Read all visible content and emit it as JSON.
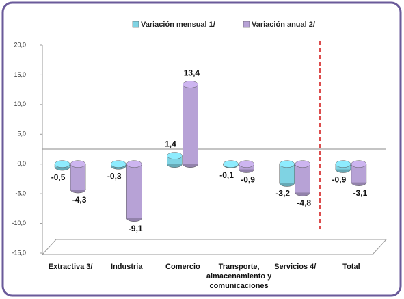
{
  "chart_data": {
    "type": "bar",
    "categories": [
      "Extractiva 3/",
      "Industria",
      "Comercio",
      "Transporte, almacenamiento y comunicaciones",
      "Servicios 4/",
      "Total"
    ],
    "series": [
      {
        "name": "Variación mensual 1/",
        "color": "#7fd3e3",
        "values": [
          -0.5,
          -0.3,
          1.4,
          -0.1,
          -3.2,
          -0.9
        ],
        "value_labels": [
          "-0,5",
          "-0,3",
          "1,4",
          "-0,1",
          "-3,2",
          "-0,9"
        ]
      },
      {
        "name": "Variación anual  2/",
        "color": "#b7a2d6",
        "values": [
          -4.3,
          -9.1,
          13.4,
          -0.9,
          -4.8,
          -3.1
        ],
        "value_labels": [
          "-4,3",
          "-9,1",
          "13,4",
          "-0,9",
          "-4,8",
          "-3,1"
        ]
      }
    ],
    "ylim": [
      -15,
      20
    ],
    "yticks": [
      {
        "value": -15,
        "label": "-15,0"
      },
      {
        "value": -10,
        "label": "-10,0"
      },
      {
        "value": -5,
        "label": "-5,0"
      },
      {
        "value": 0,
        "label": "0,0"
      },
      {
        "value": 5,
        "label": "5,0"
      },
      {
        "value": 10,
        "label": "10,0"
      },
      {
        "value": 15,
        "label": "15,0"
      },
      {
        "value": 20,
        "label": "20,0"
      }
    ],
    "legend": "top"
  }
}
